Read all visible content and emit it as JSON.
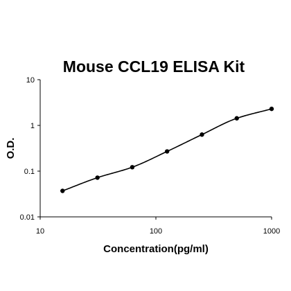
{
  "chart_data": {
    "type": "line",
    "title": "Mouse CCL19 ELISA Kit",
    "xlabel": "Concentration(pg/ml)",
    "ylabel": "O.D.",
    "x_scale": "log",
    "y_scale": "log",
    "xlim": [
      10,
      1000
    ],
    "ylim": [
      0.01,
      10
    ],
    "x_ticks": [
      "10",
      "100",
      "1000"
    ],
    "y_ticks": [
      "10",
      "1",
      "0.1",
      "0.01"
    ],
    "grid": false,
    "legend": "none",
    "line_color": "#000000",
    "marker_color": "#000000",
    "series": [
      {
        "x": [
          15.6,
          31.25,
          62.5,
          125,
          250,
          500,
          1000
        ],
        "y": [
          0.037,
          0.072,
          0.122,
          0.27,
          0.63,
          1.43,
          2.3
        ]
      }
    ]
  }
}
